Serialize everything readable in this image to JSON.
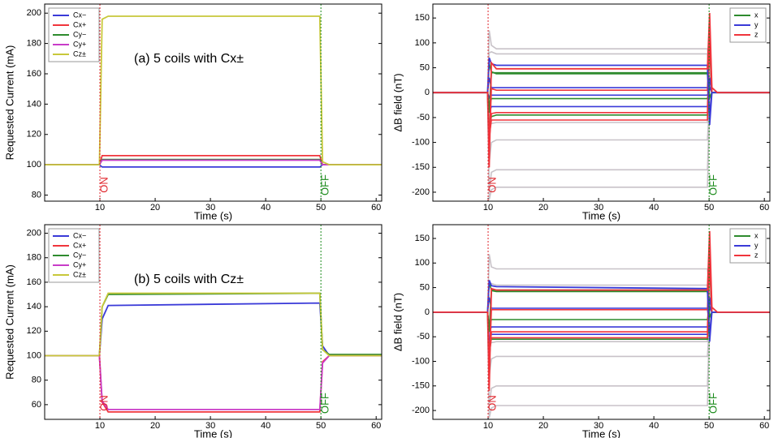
{
  "chart_data": [
    {
      "type": "line",
      "xlabel": "Time (s)",
      "ylabel": "Requested Current (mA)",
      "annotation": "(a) 5 coils with Cx±",
      "xlim": [
        0,
        61
      ],
      "xticks": [
        10,
        20,
        30,
        40,
        50,
        60
      ],
      "ylim": [
        76,
        206
      ],
      "yticks": [
        80,
        100,
        120,
        140,
        160,
        180,
        200
      ],
      "legend": "upper left",
      "markers": [
        {
          "x": 10,
          "label": "ON",
          "color": "#e0242b"
        },
        {
          "x": 50,
          "label": "OFF",
          "color": "#1a8a1a"
        }
      ],
      "x": [
        0,
        9.9,
        10.4,
        11.5,
        49.8,
        50.3,
        51.5,
        61
      ],
      "series": [
        {
          "name": "Cx−",
          "color": "#3a3ad8",
          "values": [
            100,
            100,
            98.5,
            98.5,
            98.5,
            100,
            100,
            100
          ]
        },
        {
          "name": "Cx+",
          "color": "#f0353c",
          "values": [
            100,
            100,
            106,
            106,
            106,
            100,
            100,
            100
          ]
        },
        {
          "name": "Cy−",
          "color": "#2e8b2e",
          "values": [
            100,
            100,
            103.5,
            103.5,
            103.5,
            100,
            100,
            100
          ]
        },
        {
          "name": "Cy+",
          "color": "#c83cc8",
          "values": [
            100,
            100,
            103,
            103,
            103,
            100,
            100,
            100
          ]
        },
        {
          "name": "Cz±",
          "color": "#c8c83a",
          "values": [
            100,
            100,
            196,
            198,
            198,
            102,
            100,
            100
          ]
        }
      ],
      "traces": []
    },
    {
      "type": "line",
      "xlabel": "Time (s)",
      "ylabel": "ΔB field (nT)",
      "xlim": [
        0,
        61
      ],
      "xticks": [
        10,
        20,
        30,
        40,
        50,
        60
      ],
      "ylim": [
        -218,
        178
      ],
      "yticks": [
        -200,
        -150,
        -100,
        -50,
        0,
        50,
        100,
        150
      ],
      "legend": "upper right",
      "markers": [
        {
          "x": 10,
          "label": "ON",
          "color": "#e0242b"
        },
        {
          "x": 50,
          "label": "OFF",
          "color": "#1a8a1a"
        }
      ],
      "x": [
        0,
        9.9,
        10.2,
        10.6,
        11.5,
        49.7,
        50.1,
        50.5,
        51.5,
        61
      ],
      "traces": [
        {
          "color": "#c8c2c8",
          "values": [
            0,
            0,
            125,
            95,
            88,
            88,
            40,
            0,
            0,
            0
          ]
        },
        {
          "color": "#c8c2c8",
          "values": [
            0,
            0,
            80,
            82,
            78,
            78,
            20,
            0,
            0,
            0
          ]
        },
        {
          "color": "#c8c2c8",
          "values": [
            0,
            0,
            -140,
            -100,
            -95,
            -95,
            -20,
            0,
            0,
            0
          ]
        },
        {
          "color": "#c8c2c8",
          "values": [
            0,
            0,
            -200,
            -160,
            -155,
            -155,
            -30,
            0,
            0,
            0
          ]
        },
        {
          "color": "#c8c2c8",
          "values": [
            0,
            0,
            -215,
            -195,
            -190,
            -190,
            -40,
            0,
            0,
            0
          ]
        },
        {
          "color": "#c8c2c8",
          "values": [
            0,
            0,
            -60,
            -62,
            -60,
            -60,
            -10,
            0,
            0,
            0
          ]
        },
        {
          "color": "#2e8b2e",
          "values": [
            0,
            0,
            60,
            40,
            40,
            40,
            90,
            0,
            0,
            0
          ]
        },
        {
          "color": "#2e8b2e",
          "values": [
            0,
            0,
            -30,
            -12,
            -12,
            -12,
            10,
            0,
            0,
            0
          ]
        },
        {
          "color": "#2e8b2e",
          "values": [
            0,
            0,
            -70,
            -48,
            -45,
            -45,
            30,
            0,
            0,
            0
          ]
        },
        {
          "color": "#3a3ad8",
          "values": [
            0,
            0,
            30,
            10,
            10,
            10,
            -40,
            0,
            0,
            0
          ]
        },
        {
          "color": "#3a3ad8",
          "values": [
            0,
            0,
            -40,
            -28,
            -28,
            -28,
            30,
            0,
            0,
            0
          ]
        },
        {
          "color": "#3a3ad8",
          "values": [
            0,
            0,
            -10,
            -5,
            -5,
            -5,
            10,
            0,
            0,
            0
          ]
        },
        {
          "color": "#f0353c",
          "values": [
            0,
            0,
            -120,
            8,
            5,
            5,
            120,
            0,
            0,
            0
          ]
        },
        {
          "color": "#f0353c",
          "values": [
            0,
            0,
            -100,
            -42,
            -40,
            -40,
            100,
            0,
            0,
            0
          ]
        },
        {
          "color": "#f0353c",
          "values": [
            0,
            0,
            -90,
            -55,
            -55,
            -55,
            140,
            0,
            0,
            0
          ]
        }
      ],
      "series": [
        {
          "name": "x",
          "color": "#2e8b2e",
          "values": [
            0,
            0,
            -40,
            42,
            38,
            38,
            -10,
            0,
            0,
            0
          ]
        },
        {
          "name": "y",
          "color": "#3a3ad8",
          "values": [
            0,
            0,
            70,
            58,
            55,
            55,
            -65,
            0,
            0,
            0
          ]
        },
        {
          "name": "z",
          "color": "#f0353c",
          "values": [
            0,
            0,
            -150,
            60,
            48,
            48,
            160,
            10,
            0,
            0
          ]
        }
      ]
    },
    {
      "type": "line",
      "xlabel": "Time (s)",
      "ylabel": "Requested Current (mA)",
      "annotation": "(b) 5 coils with Cz±",
      "xlim": [
        0,
        61
      ],
      "xticks": [
        10,
        20,
        30,
        40,
        50,
        60
      ],
      "ylim": [
        48,
        207
      ],
      "yticks": [
        60,
        80,
        100,
        120,
        140,
        160,
        180,
        200
      ],
      "legend": "upper left",
      "markers": [
        {
          "x": 10,
          "label": "ON",
          "color": "#e0242b"
        },
        {
          "x": 50,
          "label": "OFF",
          "color": "#1a8a1a"
        }
      ],
      "x": [
        0,
        9.9,
        10.4,
        11.5,
        49.8,
        50.3,
        51.5,
        61
      ],
      "series": [
        {
          "name": "Cx−",
          "color": "#3a3ad8",
          "values": [
            100,
            100,
            130,
            141,
            143,
            108,
            100,
            100
          ]
        },
        {
          "name": "Cx+",
          "color": "#f0353c",
          "values": [
            100,
            100,
            62,
            54,
            54,
            95,
            100,
            100
          ]
        },
        {
          "name": "Cy−",
          "color": "#2e8b2e",
          "values": [
            100,
            100,
            140,
            150,
            151,
            105,
            101,
            101
          ]
        },
        {
          "name": "Cy+",
          "color": "#c83cc8",
          "values": [
            100,
            100,
            63,
            56,
            56,
            94,
            100,
            100
          ]
        },
        {
          "name": "Cz±",
          "color": "#c8c83a",
          "values": [
            100,
            100,
            140,
            151,
            151,
            105,
            100,
            100
          ]
        }
      ],
      "traces": []
    },
    {
      "type": "line",
      "xlabel": "Time (s)",
      "ylabel": "ΔB field (nT)",
      "xlim": [
        0,
        61
      ],
      "xticks": [
        10,
        20,
        30,
        40,
        50,
        60
      ],
      "ylim": [
        -218,
        178
      ],
      "yticks": [
        -200,
        -150,
        -100,
        -50,
        0,
        50,
        100,
        150
      ],
      "legend": "upper right",
      "markers": [
        {
          "x": 10,
          "label": "ON",
          "color": "#e0242b"
        },
        {
          "x": 50,
          "label": "OFF",
          "color": "#1a8a1a"
        }
      ],
      "x": [
        0,
        9.9,
        10.2,
        10.6,
        11.5,
        49.7,
        50.1,
        50.5,
        51.5,
        61
      ],
      "traces": [
        {
          "color": "#c8c2c8",
          "values": [
            0,
            0,
            118,
            92,
            88,
            88,
            40,
            0,
            0,
            0
          ]
        },
        {
          "color": "#c8c2c8",
          "values": [
            0,
            0,
            60,
            58,
            55,
            55,
            20,
            0,
            0,
            0
          ]
        },
        {
          "color": "#c8c2c8",
          "values": [
            0,
            0,
            -130,
            -95,
            -90,
            -90,
            -20,
            0,
            0,
            0
          ]
        },
        {
          "color": "#c8c2c8",
          "values": [
            0,
            0,
            -190,
            -155,
            -150,
            -150,
            -30,
            0,
            0,
            0
          ]
        },
        {
          "color": "#c8c2c8",
          "values": [
            0,
            0,
            -215,
            -195,
            -190,
            -190,
            -40,
            0,
            0,
            0
          ]
        },
        {
          "color": "#c8c2c8",
          "values": [
            0,
            0,
            -60,
            -62,
            -60,
            -60,
            -10,
            0,
            0,
            0
          ]
        },
        {
          "color": "#2e8b2e",
          "values": [
            0,
            0,
            60,
            45,
            45,
            45,
            90,
            0,
            0,
            0
          ]
        },
        {
          "color": "#2e8b2e",
          "values": [
            0,
            0,
            -30,
            -15,
            -15,
            -15,
            10,
            0,
            0,
            0
          ]
        },
        {
          "color": "#2e8b2e",
          "values": [
            0,
            0,
            -70,
            -55,
            -55,
            -55,
            30,
            0,
            0,
            0
          ]
        },
        {
          "color": "#3a3ad8",
          "values": [
            0,
            0,
            30,
            8,
            8,
            8,
            -40,
            0,
            0,
            0
          ]
        },
        {
          "color": "#3a3ad8",
          "values": [
            0,
            0,
            -40,
            -30,
            -30,
            -30,
            30,
            0,
            0,
            0
          ]
        },
        {
          "color": "#3a3ad8",
          "values": [
            0,
            0,
            -60,
            -45,
            -45,
            -45,
            10,
            0,
            0,
            0
          ]
        },
        {
          "color": "#f0353c",
          "values": [
            0,
            0,
            -120,
            5,
            5,
            5,
            120,
            0,
            0,
            0
          ]
        },
        {
          "color": "#f0353c",
          "values": [
            0,
            0,
            -100,
            -40,
            -40,
            -40,
            100,
            0,
            0,
            0
          ]
        },
        {
          "color": "#f0353c",
          "values": [
            0,
            0,
            -90,
            -52,
            -52,
            -52,
            140,
            0,
            0,
            0
          ]
        }
      ],
      "series": [
        {
          "name": "x",
          "color": "#2e8b2e",
          "values": [
            0,
            0,
            -40,
            44,
            42,
            42,
            -10,
            0,
            0,
            0
          ]
        },
        {
          "name": "y",
          "color": "#3a3ad8",
          "values": [
            0,
            0,
            65,
            54,
            52,
            48,
            -60,
            0,
            0,
            0
          ]
        },
        {
          "name": "z",
          "color": "#f0353c",
          "values": [
            0,
            0,
            -160,
            48,
            45,
            45,
            165,
            10,
            0,
            0
          ]
        }
      ]
    }
  ]
}
